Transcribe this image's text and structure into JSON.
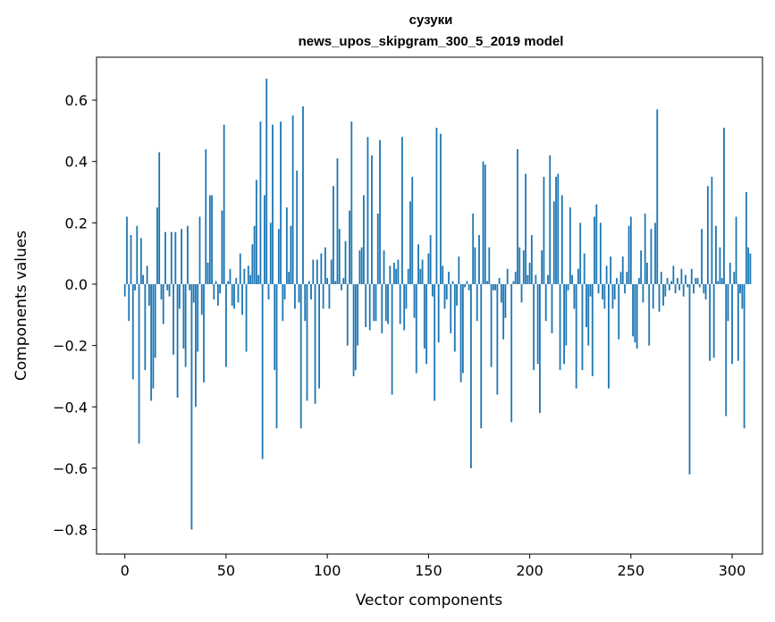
{
  "chart_data": {
    "type": "bar",
    "title": "сузуки",
    "subtitle": "news_upos_skipgram_300_5_2019 model",
    "xlabel": "Vector components",
    "ylabel": "Components values",
    "xlim": [
      -14,
      315
    ],
    "ylim": [
      -0.88,
      0.74
    ],
    "xticks": [
      0,
      50,
      100,
      150,
      200,
      250,
      300
    ],
    "xtick_labels": [
      "0",
      "50",
      "100",
      "150",
      "200",
      "250",
      "300"
    ],
    "yticks": [
      0.6,
      0.4,
      0.2,
      0.0,
      -0.2,
      -0.4,
      -0.6,
      -0.8
    ],
    "ytick_labels": [
      "0.6",
      "0.4",
      "0.2",
      "0.0",
      "−0.2",
      "−0.4",
      "−0.6",
      "−0.8"
    ],
    "bar_color": "#1f77b4",
    "values": [
      -0.04,
      0.22,
      -0.12,
      0.16,
      -0.31,
      -0.02,
      0.19,
      -0.52,
      0.15,
      0.03,
      -0.28,
      0.06,
      -0.07,
      -0.38,
      -0.34,
      -0.24,
      0.25,
      0.43,
      -0.05,
      -0.13,
      0.17,
      -0.02,
      -0.04,
      0.17,
      -0.23,
      0.17,
      -0.37,
      -0.08,
      0.18,
      -0.21,
      -0.27,
      0.19,
      -0.02,
      -0.8,
      -0.06,
      -0.4,
      -0.22,
      0.22,
      -0.1,
      -0.32,
      0.44,
      0.07,
      0.29,
      0.29,
      -0.05,
      0.01,
      -0.07,
      -0.03,
      0.24,
      0.52,
      -0.27,
      0.01,
      0.05,
      -0.07,
      -0.08,
      0.02,
      -0.06,
      0.1,
      -0.1,
      0.05,
      -0.22,
      0.06,
      0.03,
      0.13,
      0.19,
      0.34,
      0.03,
      0.53,
      -0.57,
      0.29,
      0.67,
      -0.05,
      0.2,
      0.52,
      -0.28,
      -0.47,
      0.18,
      0.53,
      -0.12,
      -0.05,
      0.25,
      0.04,
      0.19,
      0.55,
      -0.08,
      0.37,
      -0.06,
      -0.47,
      0.58,
      -0.12,
      -0.38,
      0.01,
      -0.05,
      0.08,
      -0.39,
      0.08,
      -0.34,
      0.1,
      -0.08,
      0.12,
      0.02,
      -0.08,
      0.08,
      0.32,
      0.01,
      0.41,
      0.18,
      -0.02,
      0.02,
      0.14,
      -0.2,
      0.24,
      0.53,
      -0.3,
      -0.28,
      -0.2,
      0.11,
      0.12,
      0.29,
      -0.14,
      0.48,
      -0.15,
      0.42,
      -0.12,
      -0.12,
      0.23,
      0.47,
      -0.16,
      0.11,
      -0.12,
      -0.13,
      0.06,
      -0.36,
      0.07,
      0.05,
      0.08,
      -0.13,
      0.48,
      -0.15,
      -0.08,
      0.05,
      0.27,
      0.35,
      -0.11,
      -0.29,
      0.13,
      0.05,
      0.08,
      -0.21,
      -0.26,
      0.1,
      0.16,
      -0.04,
      -0.38,
      0.51,
      -0.19,
      0.49,
      0.06,
      -0.08,
      -0.05,
      0.04,
      -0.16,
      0.01,
      -0.22,
      -0.07,
      0.09,
      -0.32,
      -0.29,
      -0.01,
      0.01,
      -0.02,
      -0.6,
      0.23,
      0.12,
      -0.12,
      0.16,
      -0.47,
      0.4,
      0.39,
      0.01,
      0.12,
      -0.27,
      -0.02,
      -0.02,
      -0.36,
      0.02,
      -0.06,
      -0.18,
      -0.11,
      0.05,
      0.0,
      -0.45,
      0.01,
      0.04,
      0.44,
      0.12,
      -0.06,
      0.11,
      0.36,
      0.03,
      0.07,
      0.16,
      -0.28,
      0.03,
      -0.26,
      -0.42,
      0.11,
      0.35,
      -0.12,
      0.03,
      0.42,
      -0.16,
      0.27,
      0.35,
      0.36,
      -0.28,
      0.29,
      -0.26,
      -0.2,
      -0.02,
      0.25,
      0.03,
      -0.08,
      -0.34,
      0.05,
      0.2,
      -0.28,
      0.1,
      -0.14,
      -0.2,
      -0.04,
      -0.3,
      0.22,
      0.26,
      -0.03,
      0.2,
      -0.05,
      -0.08,
      0.06,
      -0.34,
      0.09,
      -0.08,
      -0.05,
      0.02,
      -0.18,
      0.04,
      0.09,
      -0.03,
      0.04,
      0.19,
      0.22,
      -0.17,
      -0.19,
      -0.21,
      0.02,
      0.11,
      -0.06,
      0.23,
      0.07,
      -0.2,
      0.18,
      -0.08,
      0.2,
      0.57,
      -0.09,
      0.04,
      -0.07,
      -0.04,
      0.02,
      -0.02,
      0.01,
      0.06,
      -0.03,
      0.02,
      -0.02,
      0.05,
      -0.04,
      0.03,
      -0.01,
      -0.62,
      0.05,
      -0.03,
      0.02,
      0.02,
      -0.01,
      0.18,
      -0.03,
      -0.05,
      0.32,
      -0.25,
      0.35,
      -0.24,
      0.19,
      0.01,
      0.12,
      0.02,
      0.51,
      -0.43,
      -0.12,
      0.07,
      -0.26,
      0.04,
      0.22,
      -0.25,
      -0.03,
      -0.08,
      -0.47,
      0.3,
      0.12,
      0.1
    ]
  }
}
